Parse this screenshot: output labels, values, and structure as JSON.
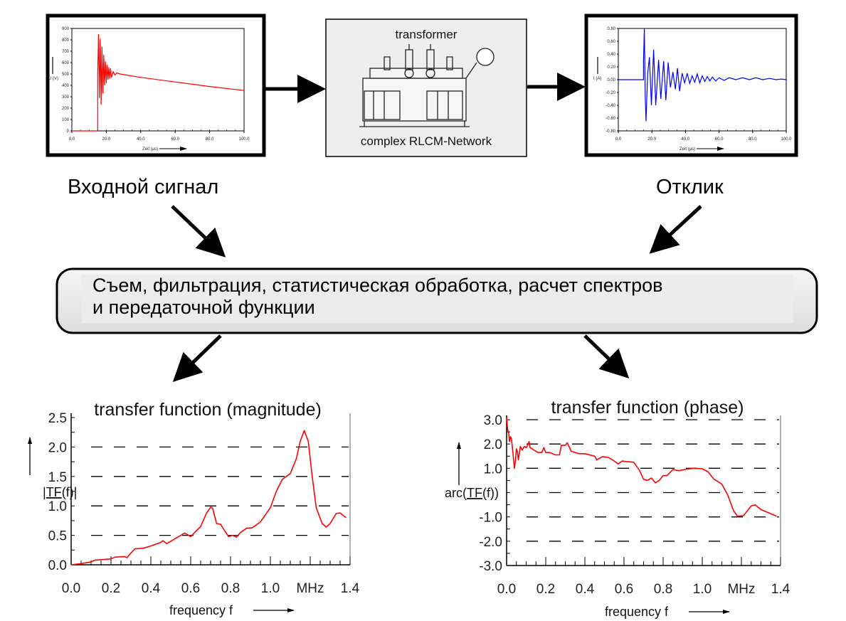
{
  "labels": {
    "input_signal": "Входной сигнал",
    "response": "Отклик",
    "processing_line1": "Съем, фильтрация, статистическая обработка, расчет спектров",
    "processing_line2": "и передаточной функции",
    "transformer_title": "transformer",
    "transformer_caption": "complex RLCM-Network"
  },
  "colors": {
    "red": "#ff0000",
    "blue": "#0000ff",
    "box_fill": "#e8e8e8"
  },
  "chart_data": [
    {
      "id": "input",
      "type": "line",
      "title": "",
      "xlabel": "Zeit (µs)",
      "ylabel": "U (V)",
      "xlim": [
        0,
        100
      ],
      "ylim": [
        0,
        900
      ],
      "xticks": [
        "0.0",
        "20.0",
        "40.0",
        "60.0",
        "80.0",
        "100.0"
      ],
      "yticks": [
        "0",
        "100",
        "200",
        "300",
        "400",
        "500",
        "600",
        "700",
        "800",
        "900"
      ],
      "color": "#ff0000",
      "points": [
        [
          0,
          0
        ],
        [
          15,
          0
        ],
        [
          15,
          510
        ],
        [
          15.5,
          850
        ],
        [
          16,
          290
        ],
        [
          16.5,
          810
        ],
        [
          17,
          230
        ],
        [
          17.5,
          740
        ],
        [
          18,
          330
        ],
        [
          18.5,
          670
        ],
        [
          19,
          400
        ],
        [
          19.5,
          610
        ],
        [
          20,
          420
        ],
        [
          20.5,
          580
        ],
        [
          21,
          450
        ],
        [
          21.5,
          560
        ],
        [
          22,
          460
        ],
        [
          22.5,
          550
        ],
        [
          23,
          470
        ],
        [
          24,
          520
        ],
        [
          25,
          490
        ],
        [
          26,
          510
        ],
        [
          28,
          500
        ],
        [
          40,
          470
        ],
        [
          60,
          430
        ],
        [
          80,
          390
        ],
        [
          100,
          355
        ]
      ]
    },
    {
      "id": "response",
      "type": "line",
      "title": "",
      "xlabel": "Zeit (µs)",
      "ylabel": "I (A)",
      "xlim": [
        0,
        100
      ],
      "ylim": [
        -0.8,
        0.8
      ],
      "xticks": [
        "0.0",
        "20.0",
        "40.0",
        "60.0",
        "80.0",
        "100.0"
      ],
      "yticks": [
        "-0.80",
        "-0.60",
        "-0.40",
        "-0.20",
        "0.00",
        "0.20",
        "0.40",
        "0.60",
        "0.80"
      ],
      "color": "#0000ff",
      "points": [
        [
          0,
          0
        ],
        [
          15,
          0
        ],
        [
          15,
          0.3
        ],
        [
          15.5,
          0.8
        ],
        [
          16,
          -0.25
        ],
        [
          16.5,
          -0.65
        ],
        [
          17.5,
          0.1
        ],
        [
          18.5,
          0.35
        ],
        [
          19.7,
          -0.4
        ],
        [
          21,
          0.47
        ],
        [
          22.3,
          -0.4
        ],
        [
          24,
          0.31
        ],
        [
          25.3,
          -0.3
        ],
        [
          27,
          0.29
        ],
        [
          28.3,
          -0.32
        ],
        [
          29.7,
          0.27
        ],
        [
          31,
          -0.12
        ],
        [
          32.5,
          0.12
        ],
        [
          34,
          -0.15
        ],
        [
          35.2,
          0.18
        ],
        [
          36.5,
          -0.18
        ],
        [
          38,
          0.1
        ],
        [
          39.5,
          -0.05
        ],
        [
          41,
          0.1
        ],
        [
          42.5,
          -0.06
        ],
        [
          44,
          0.06
        ],
        [
          45.5,
          -0.04
        ],
        [
          47,
          0.09
        ],
        [
          48.5,
          -0.05
        ],
        [
          50,
          0.06
        ],
        [
          51.5,
          -0.03
        ],
        [
          53,
          0.05
        ],
        [
          54.5,
          -0.02
        ],
        [
          56,
          0.04
        ],
        [
          58,
          -0.02
        ],
        [
          60,
          0.03
        ],
        [
          63,
          -0.01
        ],
        [
          66,
          0.03
        ],
        [
          70,
          0.0
        ],
        [
          74,
          0.03
        ],
        [
          78,
          0.0
        ],
        [
          82,
          0.03
        ],
        [
          86,
          0.0
        ],
        [
          90,
          0.02
        ],
        [
          94,
          0.0
        ],
        [
          97,
          0.01
        ],
        [
          100,
          0.0
        ]
      ]
    },
    {
      "id": "magnitude",
      "type": "line",
      "title": "transfer function (magnitude)",
      "xlabel": "frequency f",
      "ylabel_prefix": "|",
      "ylabel_underlined": "TF",
      "ylabel_suffix": "(f)|",
      "xlim": [
        0,
        1.4
      ],
      "ylim": [
        0,
        2.5
      ],
      "xtick_values": [
        0,
        0.2,
        0.4,
        0.6,
        0.8,
        1.0,
        1.2,
        1.4
      ],
      "xticks": [
        "0.0",
        "0.2",
        "0.4",
        "0.6",
        "0.8",
        "1.0",
        "MHz",
        "1.4"
      ],
      "ytick_values": [
        0,
        0.5,
        1.0,
        1.5,
        2.0,
        2.5
      ],
      "yticks": [
        "0.0",
        "0.5",
        "1.0",
        "1.5",
        "2.0",
        "2.5"
      ],
      "grid": "dashed horizontal",
      "color": "#ff0000",
      "points": [
        [
          0,
          0
        ],
        [
          0.05,
          0.02
        ],
        [
          0.1,
          0.05
        ],
        [
          0.12,
          0.08
        ],
        [
          0.2,
          0.1
        ],
        [
          0.22,
          0.13
        ],
        [
          0.27,
          0.14
        ],
        [
          0.28,
          0.12
        ],
        [
          0.3,
          0.2
        ],
        [
          0.32,
          0.27
        ],
        [
          0.36,
          0.28
        ],
        [
          0.4,
          0.32
        ],
        [
          0.45,
          0.38
        ],
        [
          0.46,
          0.41
        ],
        [
          0.48,
          0.36
        ],
        [
          0.5,
          0.4
        ],
        [
          0.55,
          0.5
        ],
        [
          0.57,
          0.54
        ],
        [
          0.6,
          0.48
        ],
        [
          0.62,
          0.55
        ],
        [
          0.65,
          0.65
        ],
        [
          0.68,
          0.88
        ],
        [
          0.7,
          0.98
        ],
        [
          0.71,
          0.96
        ],
        [
          0.73,
          0.7
        ],
        [
          0.75,
          0.69
        ],
        [
          0.77,
          0.58
        ],
        [
          0.79,
          0.48
        ],
        [
          0.81,
          0.5
        ],
        [
          0.83,
          0.47
        ],
        [
          0.85,
          0.55
        ],
        [
          0.88,
          0.62
        ],
        [
          0.91,
          0.63
        ],
        [
          0.95,
          0.73
        ],
        [
          1.0,
          0.97
        ],
        [
          1.03,
          1.25
        ],
        [
          1.06,
          1.45
        ],
        [
          1.08,
          1.5
        ],
        [
          1.1,
          1.55
        ],
        [
          1.13,
          1.8
        ],
        [
          1.15,
          2.1
        ],
        [
          1.17,
          2.28
        ],
        [
          1.19,
          2.1
        ],
        [
          1.21,
          1.5
        ],
        [
          1.23,
          0.97
        ],
        [
          1.26,
          0.7
        ],
        [
          1.28,
          0.64
        ],
        [
          1.3,
          0.7
        ],
        [
          1.33,
          0.87
        ],
        [
          1.35,
          0.88
        ],
        [
          1.38,
          0.8
        ]
      ]
    },
    {
      "id": "phase",
      "type": "line",
      "title": "transfer function (phase)",
      "xlabel": "frequency f",
      "ylabel_prefix": "arc(",
      "ylabel_underlined": "TF",
      "ylabel_suffix": "(f))",
      "xlim": [
        0,
        1.4
      ],
      "ylim": [
        -3,
        3
      ],
      "xtick_values": [
        0,
        0.2,
        0.4,
        0.6,
        0.8,
        1.0,
        1.2,
        1.4
      ],
      "xticks": [
        "0.0",
        "0.2",
        "0.4",
        "0.6",
        "0.8",
        "1.0",
        "MHz",
        "1.4"
      ],
      "ytick_values": [
        -3,
        -2,
        -1,
        1,
        2,
        3
      ],
      "yticks": [
        "-3.0",
        "-2.0",
        "-1.0",
        "1.0",
        "2.0",
        "3.0"
      ],
      "grid": "dashed horizontal",
      "color": "#ff0000",
      "points": [
        [
          0,
          3.1
        ],
        [
          0.005,
          2.6
        ],
        [
          0.01,
          2.5
        ],
        [
          0.015,
          2.1
        ],
        [
          0.02,
          2.3
        ],
        [
          0.025,
          2.2
        ],
        [
          0.03,
          1.8
        ],
        [
          0.04,
          1.0
        ],
        [
          0.045,
          1.3
        ],
        [
          0.05,
          1.8
        ],
        [
          0.055,
          1.7
        ],
        [
          0.06,
          1.35
        ],
        [
          0.07,
          1.9
        ],
        [
          0.08,
          1.75
        ],
        [
          0.09,
          1.9
        ],
        [
          0.1,
          1.85
        ],
        [
          0.11,
          2.0
        ],
        [
          0.115,
          2.1
        ],
        [
          0.12,
          1.85
        ],
        [
          0.14,
          1.75
        ],
        [
          0.16,
          1.65
        ],
        [
          0.18,
          1.65
        ],
        [
          0.19,
          1.85
        ],
        [
          0.2,
          1.65
        ],
        [
          0.22,
          1.65
        ],
        [
          0.25,
          1.55
        ],
        [
          0.27,
          1.55
        ],
        [
          0.28,
          1.95
        ],
        [
          0.3,
          1.95
        ],
        [
          0.31,
          2.05
        ],
        [
          0.33,
          1.7
        ],
        [
          0.37,
          1.6
        ],
        [
          0.4,
          1.6
        ],
        [
          0.45,
          1.5
        ],
        [
          0.46,
          1.35
        ],
        [
          0.49,
          1.48
        ],
        [
          0.52,
          1.45
        ],
        [
          0.55,
          1.3
        ],
        [
          0.57,
          1.18
        ],
        [
          0.59,
          1.3
        ],
        [
          0.61,
          1.28
        ],
        [
          0.65,
          1.25
        ],
        [
          0.68,
          0.9
        ],
        [
          0.7,
          0.55
        ],
        [
          0.72,
          0.5
        ],
        [
          0.74,
          0.6
        ],
        [
          0.76,
          0.4
        ],
        [
          0.78,
          0.5
        ],
        [
          0.8,
          0.7
        ],
        [
          0.82,
          0.7
        ],
        [
          0.85,
          0.95
        ],
        [
          0.88,
          0.9
        ],
        [
          0.92,
          0.97
        ],
        [
          0.96,
          1.0
        ],
        [
          1.0,
          0.98
        ],
        [
          1.03,
          0.85
        ],
        [
          1.06,
          0.55
        ],
        [
          1.1,
          0.35
        ],
        [
          1.13,
          -0.1
        ],
        [
          1.16,
          -0.75
        ],
        [
          1.18,
          -0.97
        ],
        [
          1.21,
          -0.95
        ],
        [
          1.25,
          -0.55
        ],
        [
          1.27,
          -0.5
        ],
        [
          1.3,
          -0.7
        ],
        [
          1.38,
          -0.97
        ]
      ]
    }
  ]
}
